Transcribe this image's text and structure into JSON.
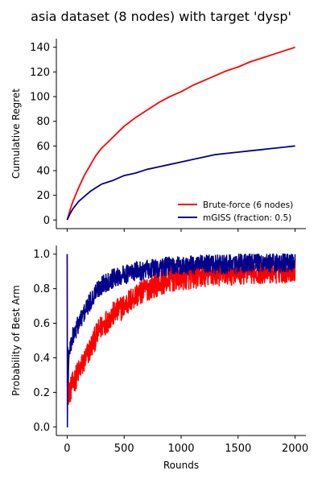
{
  "chart_data": [
    {
      "type": "line",
      "title": "asia dataset (8 nodes) with target 'dysp'",
      "xlabel": "",
      "ylabel": "Cumulative Regret",
      "xlim": [
        -95,
        2095
      ],
      "ylim": [
        -7,
        147
      ],
      "xticks": [
        0,
        500,
        1000,
        1500,
        2000
      ],
      "xticklabels_visible": false,
      "yticks": [
        0,
        20,
        40,
        60,
        80,
        100,
        120,
        140
      ],
      "grid": false,
      "legend_position": "lower-right",
      "series": [
        {
          "name": "Brute-force (6 nodes)",
          "color": "#ff0000",
          "x": [
            0,
            25,
            50,
            100,
            150,
            200,
            250,
            300,
            400,
            500,
            600,
            700,
            800,
            900,
            1000,
            1100,
            1200,
            1300,
            1400,
            1500,
            1600,
            1700,
            1800,
            1900,
            2000
          ],
          "y": [
            0,
            8,
            15,
            26,
            36,
            44,
            52,
            58,
            67,
            76,
            83,
            89,
            95,
            100,
            104,
            109,
            113,
            117,
            121,
            124,
            128,
            131,
            134,
            137,
            140
          ]
        },
        {
          "name": "mGISS (fraction: 0.5)",
          "color": "#00008b",
          "x": [
            0,
            25,
            50,
            100,
            150,
            200,
            250,
            300,
            400,
            500,
            600,
            700,
            800,
            900,
            1000,
            1100,
            1200,
            1300,
            1400,
            1500,
            1600,
            1700,
            1800,
            1900,
            2000
          ],
          "y": [
            0,
            5,
            9,
            15,
            19,
            23,
            26,
            29,
            32,
            36,
            38,
            41,
            43,
            45,
            47,
            49,
            51,
            53,
            54,
            55,
            56,
            57,
            58,
            59,
            60
          ]
        }
      ]
    },
    {
      "type": "line",
      "title": "",
      "xlabel": "Rounds",
      "ylabel": "Probability of Best Arm",
      "xlim": [
        -95,
        2095
      ],
      "ylim": [
        -0.05,
        1.05
      ],
      "xticks": [
        0,
        500,
        1000,
        1500,
        2000
      ],
      "yticks": [
        0.0,
        0.2,
        0.4,
        0.6,
        0.8,
        1.0
      ],
      "grid": false,
      "series": [
        {
          "name": "",
          "color": "#ff0000",
          "noise_amplitude": 0.045,
          "x": [
            0,
            2,
            5,
            10,
            20,
            50,
            100,
            150,
            200,
            250,
            300,
            400,
            500,
            600,
            700,
            800,
            900,
            1000,
            1200,
            1400,
            1600,
            1800,
            2000
          ],
          "y": [
            1.0,
            0.0,
            0.5,
            0.2,
            0.2,
            0.25,
            0.32,
            0.38,
            0.45,
            0.52,
            0.58,
            0.65,
            0.7,
            0.76,
            0.8,
            0.83,
            0.85,
            0.86,
            0.88,
            0.89,
            0.9,
            0.9,
            0.91
          ]
        },
        {
          "name": "",
          "color": "#00008b",
          "noise_amplitude": 0.035,
          "x": [
            0,
            2,
            5,
            10,
            20,
            50,
            100,
            150,
            200,
            250,
            300,
            400,
            500,
            600,
            700,
            800,
            900,
            1000,
            1200,
            1400,
            1600,
            1800,
            2000
          ],
          "y": [
            1.0,
            0.0,
            0.5,
            0.3,
            0.45,
            0.52,
            0.6,
            0.66,
            0.72,
            0.78,
            0.82,
            0.86,
            0.88,
            0.9,
            0.91,
            0.92,
            0.93,
            0.93,
            0.94,
            0.94,
            0.95,
            0.95,
            0.95
          ]
        }
      ]
    }
  ]
}
